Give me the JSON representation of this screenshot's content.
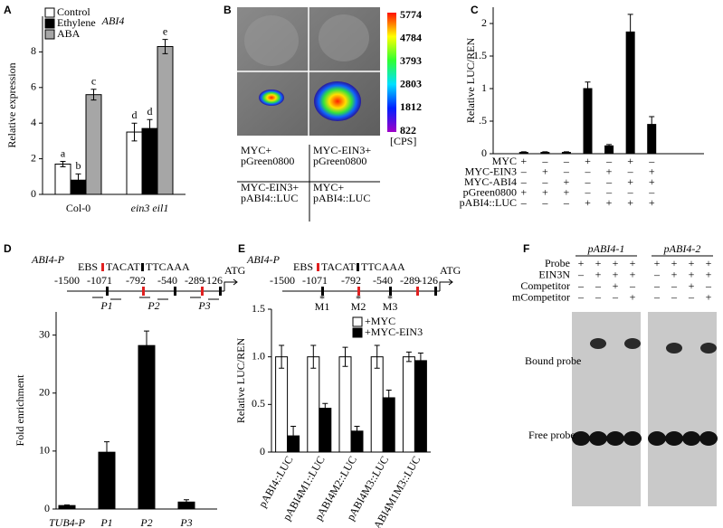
{
  "panel_labels": [
    "A",
    "B",
    "C",
    "D",
    "E",
    "F"
  ],
  "chart_data": [
    {
      "type": "bar",
      "title": "ABI4",
      "y_label": "Relative expression",
      "categories": [
        "Col-0",
        "ein3 eil1"
      ],
      "series": [
        {
          "name": "Control",
          "color": "#ffffff",
          "values": [
            1.7,
            3.5
          ],
          "errors": [
            0.15,
            0.5
          ],
          "letters": [
            "a",
            "d"
          ]
        },
        {
          "name": "Ethylene",
          "color": "#000000",
          "values": [
            0.8,
            3.7
          ],
          "errors": [
            0.35,
            0.5
          ],
          "letters": [
            "b",
            "d"
          ]
        },
        {
          "name": "ABA",
          "color": "#a6a6a6",
          "values": [
            5.6,
            8.3
          ],
          "errors": [
            0.3,
            0.4
          ],
          "letters": [
            "c",
            "e"
          ]
        }
      ],
      "ylim": [
        0,
        10
      ],
      "yticks": [
        0,
        2,
        4,
        6,
        8
      ]
    },
    {
      "type": "bar",
      "y_label": "Relative LUC/REN",
      "categories": [
        null,
        null,
        null,
        null,
        null,
        null,
        null
      ],
      "values": [
        0.02,
        0.02,
        0.02,
        1.0,
        0.12,
        1.87,
        0.45
      ],
      "errors": [
        0.01,
        0.01,
        0.01,
        0.1,
        0.02,
        0.27,
        0.12
      ],
      "color": "#000000",
      "ylim": [
        0,
        2.25
      ],
      "yticks": [
        0,
        {
          "value": 0.5,
          "label": ".5"
        },
        1,
        1.5,
        2
      ],
      "conditions": [
        {
          "label": "MYC",
          "signs": [
            "+",
            "–",
            "–",
            "+",
            "–",
            "+",
            "–"
          ]
        },
        {
          "label": "MYC-EIN3",
          "signs": [
            "–",
            "+",
            "–",
            "–",
            "+",
            "–",
            "+"
          ]
        },
        {
          "label": "MYC-ABI4",
          "signs": [
            "–",
            "–",
            "+",
            "–",
            "–",
            "+",
            "+"
          ]
        },
        {
          "label": "pGreen0800",
          "signs": [
            "+",
            "+",
            "+",
            "–",
            "–",
            "–",
            "–"
          ]
        },
        {
          "label": "pABI4::LUC",
          "signs": [
            "–",
            "–",
            "–",
            "+",
            "+",
            "+",
            "+"
          ]
        }
      ]
    },
    {
      "type": "bar",
      "y_label": "Fold enrichment",
      "categories": [
        "TUB4-P",
        "P1",
        "P2",
        "P3"
      ],
      "values": [
        0.6,
        9.8,
        28.2,
        1.2
      ],
      "errors": [
        0.1,
        1.8,
        2.5,
        0.4
      ],
      "color": "#000000",
      "ylim": [
        0,
        34
      ],
      "yticks": [
        0,
        10,
        20,
        30
      ]
    },
    {
      "type": "bar",
      "y_label": "Relative LUC/REN",
      "categories": [
        "pABI4::LUC",
        "pABI4M1::LUC",
        "pABI4M2::LUC",
        "pABI4M3::LUC",
        "pABI4M1M3::LUC"
      ],
      "series": [
        {
          "name": "+MYC",
          "color": "#ffffff",
          "values": [
            1.0,
            1.0,
            1.0,
            1.0,
            1.0
          ],
          "errors": [
            0.12,
            0.12,
            0.1,
            0.12,
            0.05
          ]
        },
        {
          "name": "+MYC-EIN3",
          "color": "#000000",
          "values": [
            0.17,
            0.46,
            0.22,
            0.57,
            0.96
          ],
          "errors": [
            0.1,
            0.05,
            0.05,
            0.08,
            0.08
          ]
        }
      ],
      "ylim": [
        0,
        1.5
      ],
      "yticks": [
        0,
        0.5,
        {
          "value": 1,
          "label": "1.0"
        },
        1.5
      ]
    }
  ],
  "panels": {
    "B": {
      "colorbar": [
        "5774",
        "4784",
        "3793",
        "2803",
        "1812",
        "822"
      ],
      "unit": "[CPS]",
      "cells": [
        [
          "MYC+",
          "pGreen0800"
        ],
        [
          "MYC-EIN3+",
          "pGreen0800"
        ],
        [
          "MYC-EIN3+",
          "pABI4::LUC"
        ],
        [
          "MYC+",
          "pABI4::LUC"
        ]
      ]
    },
    "D": {
      "name": "ABI4-P",
      "legend": [
        "EBS",
        "TACAT",
        "TTCAAA"
      ],
      "positions": [
        "-1500",
        "-1071",
        "-792",
        "-540",
        "-289",
        "-126"
      ],
      "start": "ATG",
      "primers": [
        "P1",
        "P2",
        "P3"
      ]
    },
    "E": {
      "name": "ABI4-P",
      "legend": [
        "EBS",
        "TACAT",
        "TTCAAA"
      ],
      "positions": [
        "-1500",
        "-1071",
        "-792",
        "-540",
        "-289",
        "-126"
      ],
      "start": "ATG",
      "mutations": [
        "M1",
        "M2",
        "M3"
      ],
      "mutation_mark": "*"
    },
    "F": {
      "blots": [
        "pABI4-1",
        "pABI4-2"
      ],
      "rows": [
        {
          "label": "Probe",
          "signs": [
            "+",
            "+",
            "+",
            "+",
            "+",
            "+",
            "+",
            "+"
          ]
        },
        {
          "label": "EIN3N",
          "signs": [
            "–",
            "+",
            "+",
            "+",
            "–",
            "+",
            "+",
            "+"
          ]
        },
        {
          "label": "Competitor",
          "signs": [
            "–",
            "–",
            "+",
            "–",
            "–",
            "–",
            "+",
            "–"
          ]
        },
        {
          "label": "mCompetitor",
          "signs": [
            "–",
            "–",
            "–",
            "+",
            "–",
            "–",
            "–",
            "+"
          ]
        }
      ],
      "bound": "Bound probe",
      "free": "Free probe"
    }
  }
}
